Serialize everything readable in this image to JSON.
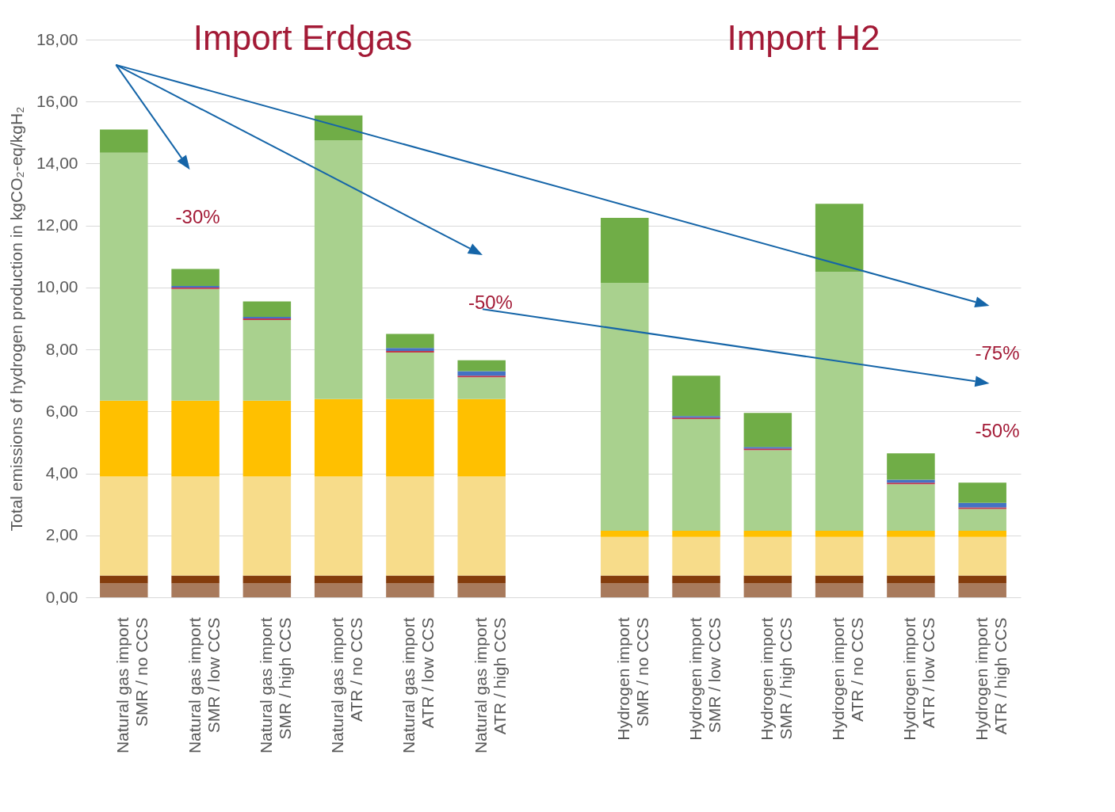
{
  "chart_data": {
    "type": "bar",
    "stacked": true,
    "ylabel": "Total emissions of hydrogen production in kgCO₂-eq/kgH₂",
    "categories": [
      "Natural gas import\nSMR / no CCS",
      "Natural gas import\nSMR / low CCS",
      "Natural gas import\nSMR / high CCS",
      "Natural gas import\nATR / no CCS",
      "Natural gas import\nATR / low CCS",
      "Natural gas import\nATR / high CCS",
      null,
      "Hydrogen import\nSMR / no CCS",
      "Hydrogen import\nSMR / low CCS",
      "Hydrogen import\nSMR / high CCS",
      "Hydrogen import\nATR / no CCS",
      "Hydrogen import\nATR / low CCS",
      "Hydrogen import\nATR / high CCS"
    ],
    "series": [
      {
        "color": "#a87a5c",
        "values": [
          0.45,
          0.45,
          0.45,
          0.45,
          0.45,
          0.45,
          null,
          0.45,
          0.45,
          0.45,
          0.45,
          0.45,
          0.45
        ]
      },
      {
        "color": "#843c0c",
        "values": [
          0.25,
          0.25,
          0.25,
          0.25,
          0.25,
          0.25,
          null,
          0.25,
          0.25,
          0.25,
          0.25,
          0.25,
          0.25
        ]
      },
      {
        "color": "#f7dc8a",
        "values": [
          3.2,
          3.2,
          3.2,
          3.2,
          3.2,
          3.2,
          null,
          1.25,
          1.25,
          1.25,
          1.25,
          1.25,
          1.25
        ]
      },
      {
        "color": "#ffc000",
        "values": [
          2.45,
          2.45,
          2.45,
          2.5,
          2.5,
          2.5,
          null,
          0.2,
          0.2,
          0.2,
          0.2,
          0.2,
          0.2
        ]
      },
      {
        "color": "#a9d18e",
        "values": [
          8.0,
          3.6,
          2.6,
          8.35,
          1.5,
          0.7,
          null,
          8.0,
          3.6,
          2.6,
          8.35,
          1.5,
          0.7
        ]
      },
      {
        "color": "#c0394d",
        "values": [
          null,
          0.05,
          0.05,
          null,
          0.05,
          0.05,
          null,
          null,
          0.05,
          0.05,
          null,
          0.05,
          0.05
        ]
      },
      {
        "color": "#4472c4",
        "values": [
          null,
          0.05,
          0.05,
          null,
          0.1,
          0.15,
          null,
          null,
          0.05,
          0.05,
          null,
          0.1,
          0.15
        ]
      },
      {
        "color": "#70ad47",
        "values": [
          0.75,
          0.55,
          0.5,
          0.8,
          0.45,
          0.35,
          null,
          2.1,
          1.3,
          1.1,
          2.2,
          0.85,
          0.65
        ]
      }
    ],
    "ylim": [
      0,
      18
    ],
    "yticks": [
      {
        "value": 0,
        "label": "0,00"
      },
      {
        "value": 2,
        "label": "2,00"
      },
      {
        "value": 4,
        "label": "4,00"
      },
      {
        "value": 6,
        "label": "6,00"
      },
      {
        "value": 8,
        "label": "8,00"
      },
      {
        "value": 10,
        "label": "10,00"
      },
      {
        "value": 12,
        "label": "12,00"
      },
      {
        "value": 14,
        "label": "14,00"
      },
      {
        "value": 16,
        "label": "16,00"
      },
      {
        "value": 18,
        "label": "18,00"
      }
    ],
    "grid": "y",
    "annotations": [
      "Import Erdgas",
      "Import H2",
      "-30%",
      "-50%",
      "-75%",
      "-50%"
    ]
  }
}
